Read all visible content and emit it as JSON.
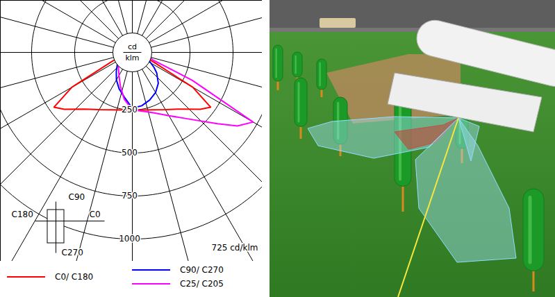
{
  "chart_data": {
    "type": "polar",
    "unit_label": [
      "cd",
      "klm"
    ],
    "peak_label": "725 cd/klm",
    "c_plane_labels": [
      "C90",
      "C180",
      "C0",
      "C270"
    ],
    "rlim": [
      0,
      1000
    ],
    "rticks": [
      250,
      500,
      750,
      1000
    ],
    "angle_ticks": [
      0,
      15,
      30,
      45,
      60,
      75,
      90,
      105,
      120,
      135,
      150,
      165,
      180,
      195,
      210,
      225,
      240,
      255,
      270,
      285,
      300,
      315,
      330,
      345
    ],
    "grid": true,
    "legend": "bottom",
    "theta": [
      -90,
      -80,
      -70,
      -65,
      -60,
      -55,
      -50,
      -40,
      -30,
      -20,
      -10,
      0,
      10,
      20,
      30,
      40,
      50,
      55,
      60,
      65,
      70,
      80,
      90
    ],
    "series": [
      {
        "name": "C0/ C180",
        "color": "#ff0000",
        "values": [
          0,
          0,
          0,
          60,
          320,
          470,
          430,
          345,
          300,
          270,
          255,
          250,
          255,
          270,
          300,
          345,
          430,
          470,
          320,
          60,
          0,
          0,
          0
        ]
      },
      {
        "name": "C90/ C270",
        "color": "#0000ff",
        "values": [
          0,
          0,
          0,
          0,
          10,
          20,
          30,
          60,
          100,
          140,
          180,
          240,
          230,
          210,
          185,
          150,
          100,
          70,
          40,
          20,
          0,
          0,
          0
        ]
      },
      {
        "name": "C25/ C205",
        "color": "#ff00ff",
        "values": [
          0,
          0,
          0,
          0,
          0,
          10,
          20,
          40,
          70,
          120,
          190,
          250,
          262,
          290,
          340,
          420,
          560,
          660,
          725,
          300,
          40,
          0,
          0
        ]
      }
    ]
  }
}
